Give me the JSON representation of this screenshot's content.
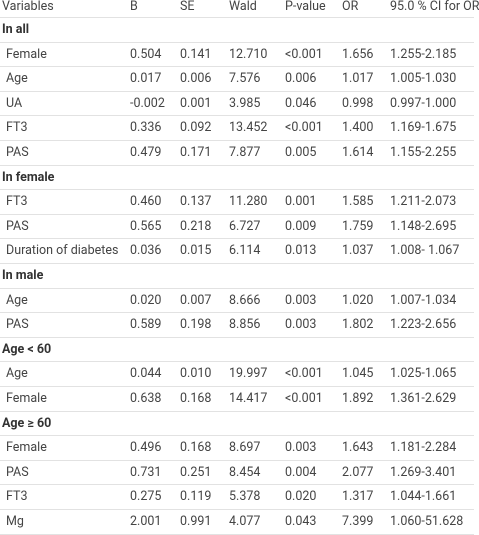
{
  "table": {
    "header": [
      "Variables",
      "B",
      "SE",
      "Wald",
      "P-value",
      "OR",
      "95.0 % CI for OR"
    ],
    "sections": [
      {
        "title": "In all",
        "rows": [
          [
            "Female",
            "0.504",
            "0.141",
            "12.710",
            "<0.001",
            "1.656",
            "1.255-2.185"
          ],
          [
            "Age",
            "0.017",
            "0.006",
            "7.576",
            "0.006",
            "1.017",
            "1.005-1.030"
          ],
          [
            "UA",
            "-0.002",
            "0.001",
            "3.985",
            "0.046",
            "0.998",
            "0.997-1.000"
          ],
          [
            "FT3",
            "0.336",
            "0.092",
            "13.452",
            "<0.001",
            "1.400",
            "1.169-1.675"
          ],
          [
            "PAS",
            "0.479",
            "0.171",
            "7.877",
            "0.005",
            "1.614",
            "1.155-2.255"
          ]
        ]
      },
      {
        "title": "In female",
        "rows": [
          [
            "FT3",
            "0.460",
            "0.137",
            "11.280",
            "0.001",
            "1.585",
            "1.211-2.073"
          ],
          [
            "PAS",
            "0.565",
            "0.218",
            "6.727",
            "0.009",
            "1.759",
            "1.148-2.695"
          ],
          [
            "Duration of diabetes",
            "0.036",
            "0.015",
            "6.114",
            "0.013",
            "1.037",
            "1.008- 1.067"
          ]
        ]
      },
      {
        "title": "In male",
        "rows": [
          [
            "Age",
            "0.020",
            "0.007",
            "8.666",
            "0.003",
            "1.020",
            "1.007-1.034"
          ],
          [
            "PAS",
            "0.589",
            "0.198",
            "8.856",
            "0.003",
            "1.802",
            "1.223-2.656"
          ]
        ]
      },
      {
        "title": "Age < 60",
        "rows": [
          [
            "Age",
            "0.044",
            "0.010",
            "19.997",
            "<0.001",
            "1.045",
            "1.025-1.065"
          ],
          [
            "Female",
            "0.638",
            "0.168",
            "14.417",
            "<0.001",
            "1.892",
            "1.361-2.629"
          ]
        ]
      },
      {
        "title": "Age ≥ 60",
        "rows": [
          [
            "Female",
            "0.496",
            "0.168",
            "8.697",
            "0.003",
            "1.643",
            "1.181-2.284"
          ],
          [
            "PAS",
            "0.731",
            "0.251",
            "8.454",
            "0.004",
            "2.077",
            "1.269-3.401"
          ],
          [
            "FT3",
            "0.275",
            "0.119",
            "5.378",
            "0.020",
            "1.317",
            "1.044-1.661"
          ],
          [
            "Mg",
            "2.001",
            "0.991",
            "4.077",
            "0.043",
            "7.399",
            "1.060-51.628"
          ]
        ]
      }
    ]
  }
}
